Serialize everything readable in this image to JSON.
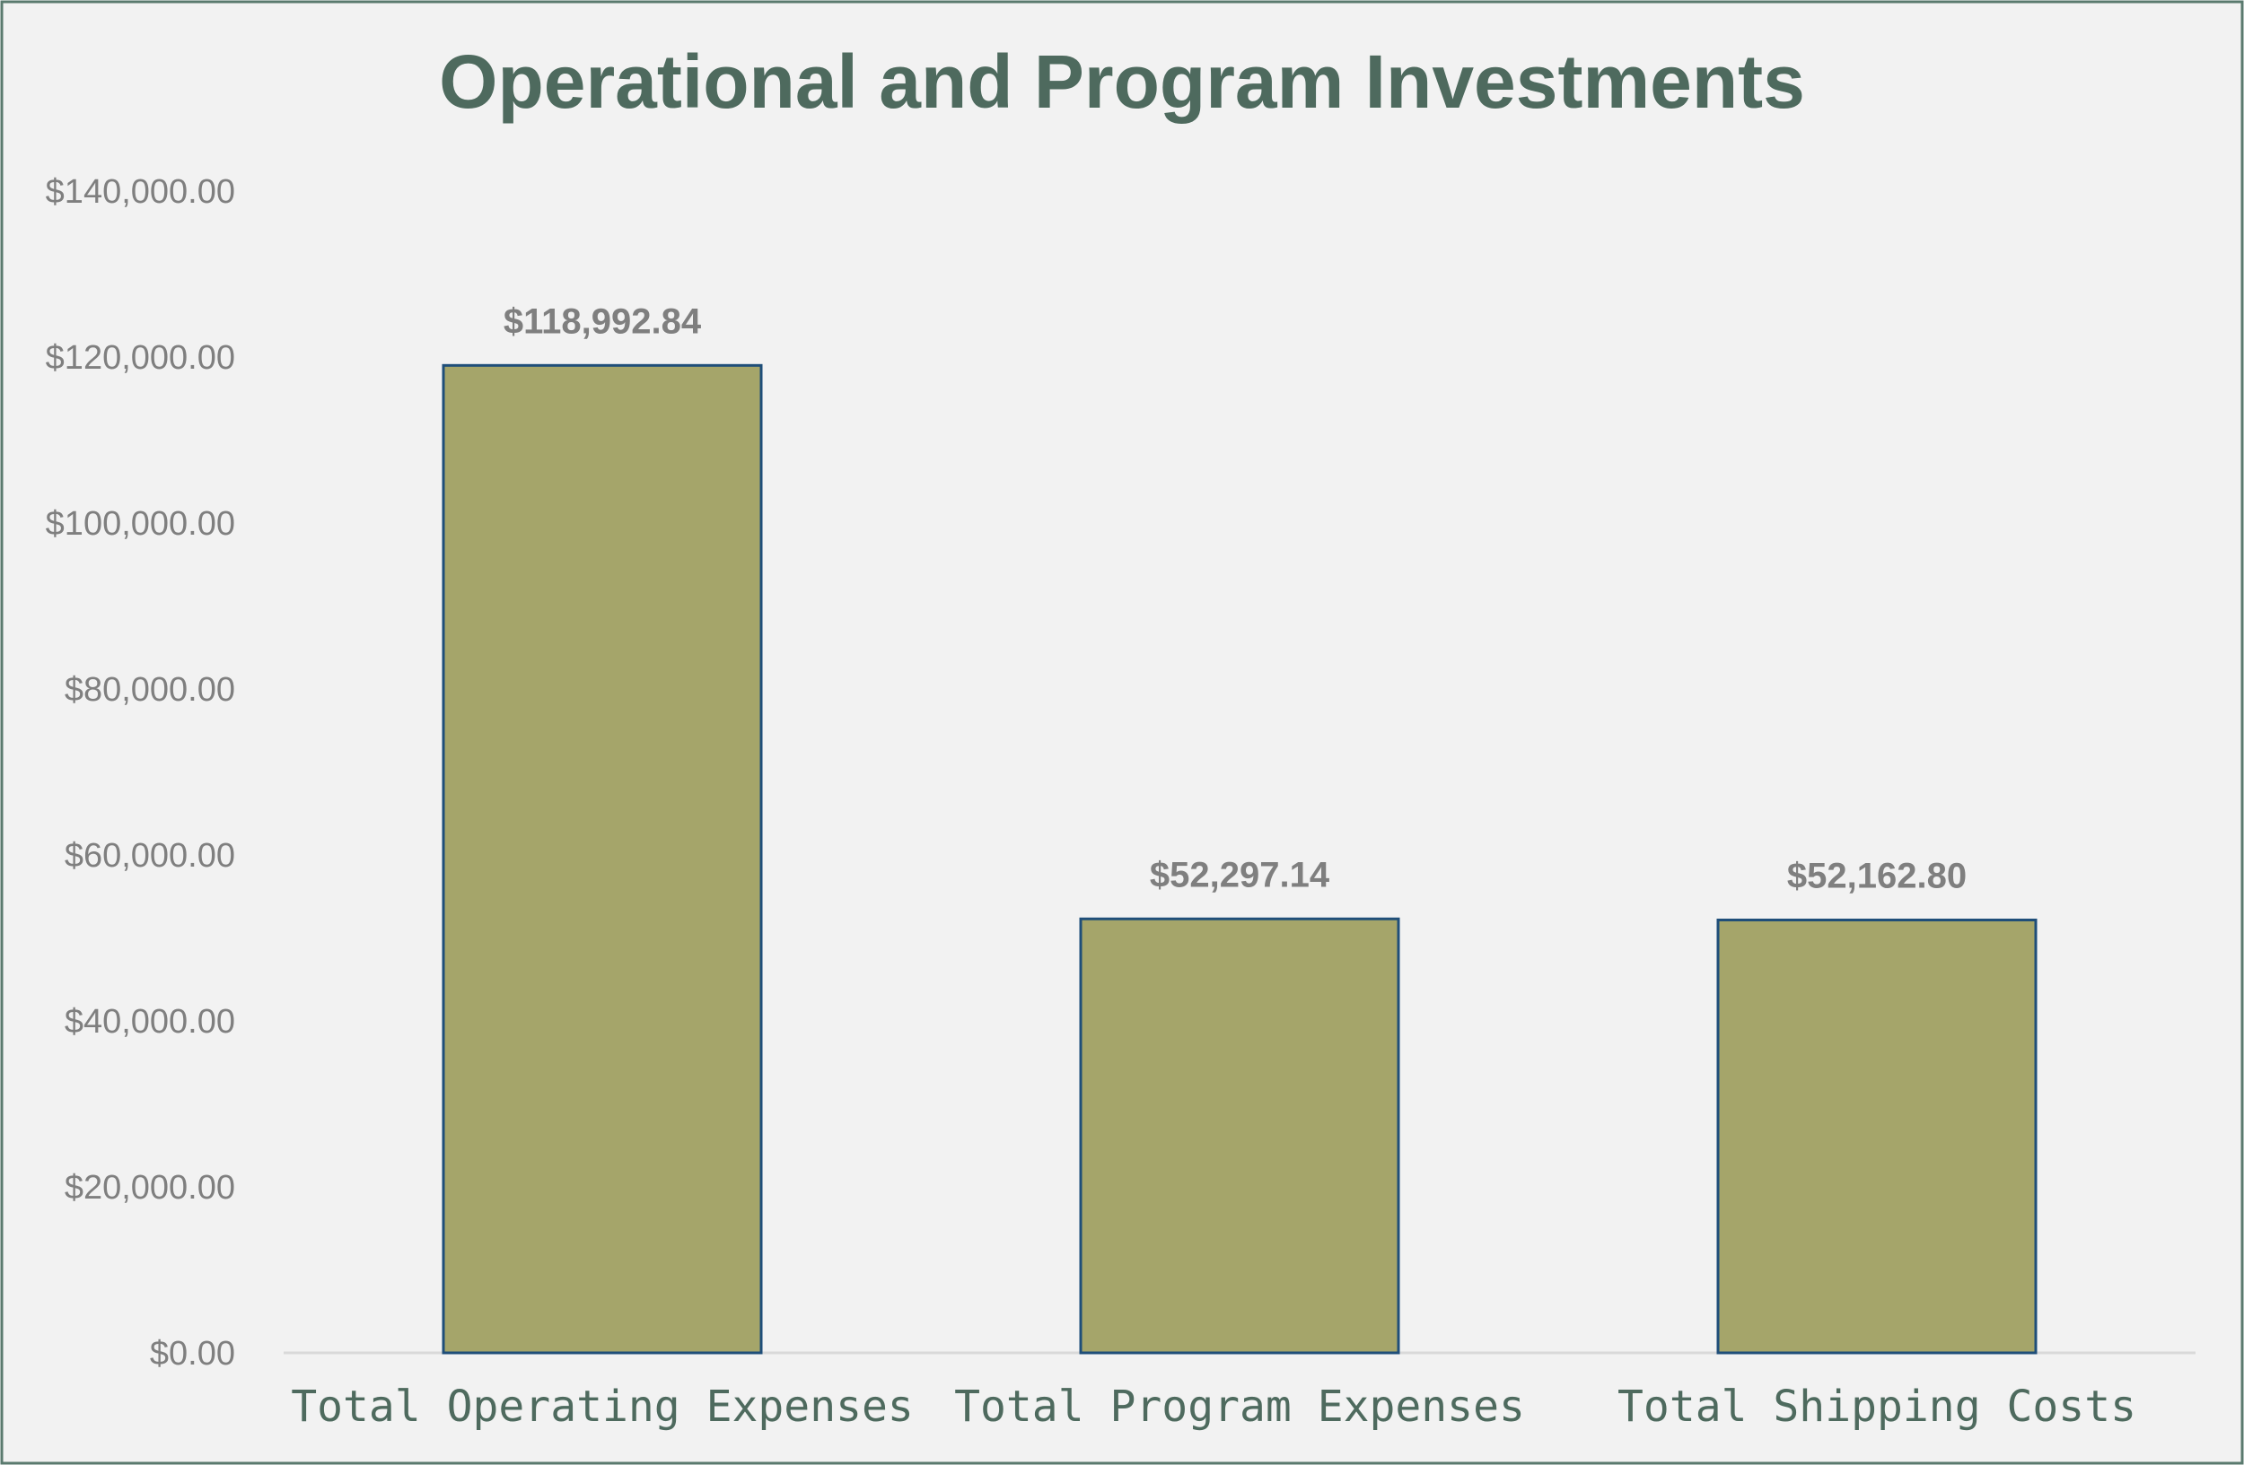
{
  "chart_data": {
    "type": "bar",
    "title": "Operational and Program Investments",
    "xlabel": "",
    "ylabel": "",
    "categories": [
      "Total Operating Expenses",
      "Total Program Expenses",
      "Total Shipping Costs"
    ],
    "values": [
      118992.84,
      52297.14,
      52162.8
    ],
    "data_labels": [
      "$118,992.84",
      "$52,297.14",
      "$52,162.80"
    ],
    "ylim": [
      0,
      140000
    ],
    "yticks": [
      0,
      20000,
      40000,
      60000,
      80000,
      100000,
      120000,
      140000
    ],
    "ytick_labels": [
      "$0.00",
      "$20,000.00",
      "$40,000.00",
      "$60,000.00",
      "$80,000.00",
      "$100,000.00",
      "$120,000.00",
      "$140,000.00"
    ],
    "grid": false,
    "legend": "none"
  },
  "colors": {
    "background": "#f2f2f2",
    "frame_border": "#5a7a6e",
    "title": "#4e6a5e",
    "bar_fill": "#a5a56a",
    "bar_border": "#1f4e79",
    "tick_text": "#7f7f7f",
    "category_text": "#4e6a5e",
    "axis_line": "#d9d9d9"
  }
}
